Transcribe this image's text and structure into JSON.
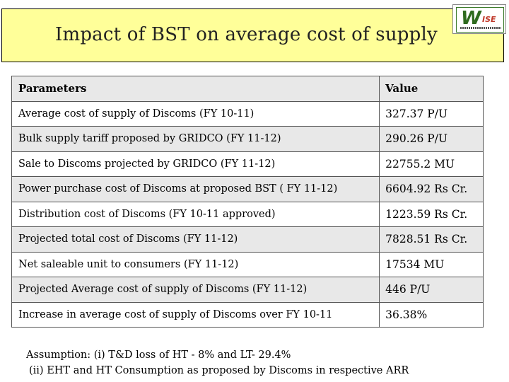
{
  "title": "Impact of BST on average cost of supply",
  "logo": {
    "main": "W",
    "accent": "ISE",
    "icon": "wise-logo-icon"
  },
  "table": {
    "headers": {
      "parameter": "Parameters",
      "value": "Value"
    },
    "rows": [
      {
        "parameter": "Average cost of supply of Discoms (FY 10-11)",
        "value": "327.37 P/U"
      },
      {
        "parameter": "Bulk supply tariff proposed by GRIDCO (FY 11-12)",
        "value": "290.26 P/U"
      },
      {
        "parameter": "Sale to Discoms projected by GRIDCO (FY 11-12)",
        "value": "22755.2 MU"
      },
      {
        "parameter": "Power purchase cost of Discoms at proposed BST ( FY 11-12)",
        "value": "6604.92 Rs Cr."
      },
      {
        "parameter": "Distribution cost of Discoms (FY 10-11 approved)",
        "value": "1223.59 Rs Cr."
      },
      {
        "parameter": "Projected total cost of Discoms (FY 11-12)",
        "value": "7828.51 Rs Cr."
      },
      {
        "parameter": "Net saleable unit to consumers (FY 11-12)",
        "value": "17534 MU"
      },
      {
        "parameter": "Projected Average cost of supply of Discoms (FY 11-12)",
        "value": "446 P/U"
      },
      {
        "parameter": "Increase in average cost of supply of Discoms over FY 10-11",
        "value": "36.38%"
      }
    ]
  },
  "assumption": {
    "line1": "Assumption: (i) T&D loss of  HT - 8% and LT- 29.4%",
    "line2": "(ii) EHT and HT Consumption as proposed by Discoms in respective ARR"
  },
  "colors": {
    "title_bg": "#ffff99",
    "row_shade": "#e8e8e8",
    "logo_green": "#2e6a1e",
    "logo_red": "#c0392b"
  }
}
